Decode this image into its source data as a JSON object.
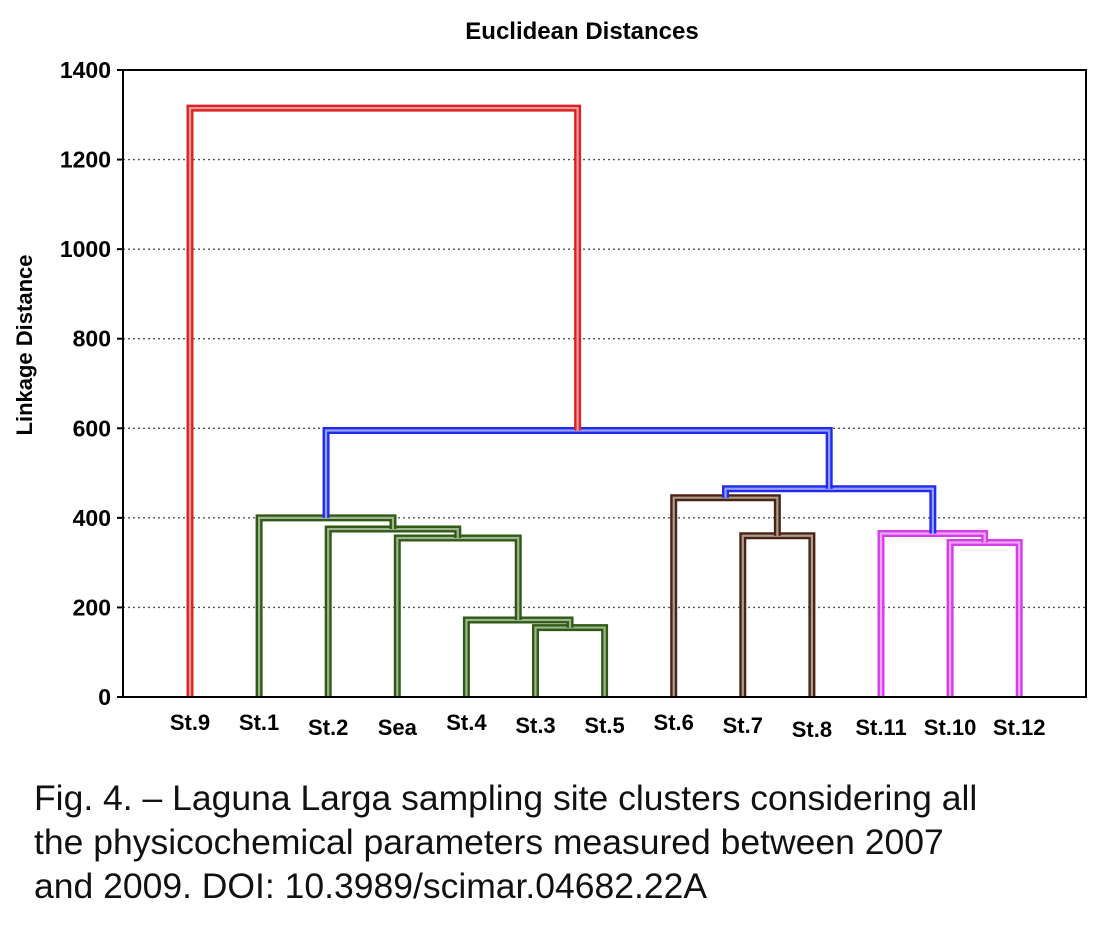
{
  "chart_data": {
    "type": "dendrogram",
    "title": "Euclidean Distances",
    "ylabel": "Linkage Distance",
    "ylim": [
      0,
      1400
    ],
    "yticks": [
      0,
      200,
      400,
      600,
      800,
      1000,
      1200,
      1400
    ],
    "grid": true,
    "leaves": [
      "St.9",
      "St.1",
      "St.2",
      "Sea",
      "St.4",
      "St.3",
      "St.5",
      "St.6",
      "St.7",
      "St.8",
      "St.11",
      "St.10",
      "St.12"
    ],
    "colors": {
      "red": "#dd2222",
      "blue": "#1f2bf0",
      "green": "#2e5a12",
      "brown": "#4a2410",
      "magenta": "#d63ce8"
    },
    "merges": [
      {
        "id": "m1",
        "left": "St.3",
        "right": "St.5",
        "height": 155,
        "color": "green"
      },
      {
        "id": "m2",
        "left": "St.4",
        "right": "m1",
        "height": 172,
        "color": "green"
      },
      {
        "id": "m3",
        "left": "Sea",
        "right": "m2",
        "height": 355,
        "color": "green"
      },
      {
        "id": "m4",
        "left": "St.2",
        "right": "m3",
        "height": 375,
        "color": "green"
      },
      {
        "id": "m5",
        "left": "St.1",
        "right": "m4",
        "height": 400,
        "color": "green"
      },
      {
        "id": "m6",
        "left": "St.7",
        "right": "St.8",
        "height": 360,
        "color": "brown"
      },
      {
        "id": "m7",
        "left": "St.6",
        "right": "m6",
        "height": 445,
        "color": "brown"
      },
      {
        "id": "m8",
        "left": "St.10",
        "right": "St.12",
        "height": 345,
        "color": "magenta"
      },
      {
        "id": "m9",
        "left": "St.11",
        "right": "m8",
        "height": 365,
        "color": "magenta"
      },
      {
        "id": "m10",
        "left": "m7",
        "right": "m9",
        "height": 465,
        "color": "blue"
      },
      {
        "id": "m11",
        "left": "m5",
        "right": "m10",
        "height": 595,
        "color": "blue"
      },
      {
        "id": "m12",
        "left": "St.9",
        "right": "m11",
        "height": 1315,
        "color": "red"
      }
    ]
  },
  "caption": {
    "line1": "Fig. 4. – Laguna Larga sampling site clusters considering all",
    "line2": "the physicochemical parameters measured between 2007",
    "line3": "and 2009. DOI: 10.3989/scimar.04682.22A"
  }
}
